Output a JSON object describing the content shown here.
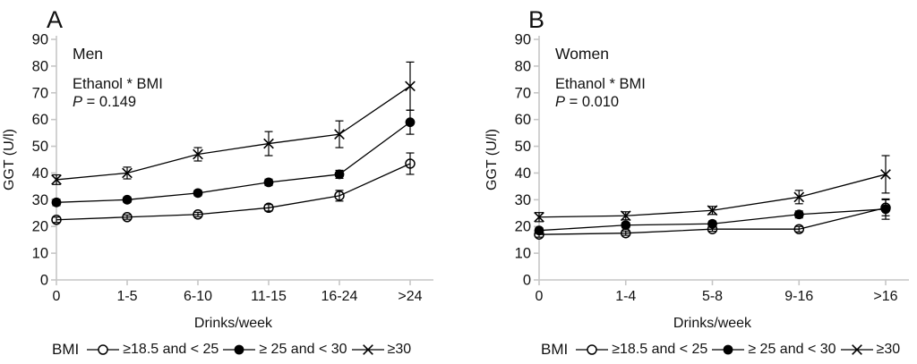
{
  "figure": {
    "background": "#ffffff",
    "line_color": "#000000",
    "axis_color": "#c6c6c6",
    "text_color": "#111111"
  },
  "legend": {
    "prefix": "BMI"
  },
  "chart_data": [
    {
      "type": "line",
      "panel_letter": "A",
      "group_label": "Men",
      "annotation": "Ethanol * BMI",
      "p_italic": "P",
      "p_text": " = 0.149",
      "xlabel": "Drinks/week",
      "ylabel": "GGT (U/l)",
      "ylim": [
        0,
        90
      ],
      "yticks": [
        0,
        10,
        20,
        30,
        40,
        50,
        60,
        70,
        80,
        90
      ],
      "categories": [
        "0",
        "1-5",
        "6-10",
        "11-15",
        "16-24",
        ">24"
      ],
      "series": [
        {
          "name": "≥18.5 and < 25",
          "marker": "open-circle",
          "values": [
            22.5,
            23.5,
            24.5,
            27,
            31.5,
            43.5
          ],
          "errors": [
            1,
            0.8,
            0.8,
            1.2,
            2,
            4
          ]
        },
        {
          "name": "≥ 25 and < 30",
          "marker": "filled-circle",
          "values": [
            29,
            30,
            32.5,
            36.5,
            39.5,
            59
          ],
          "errors": [
            1.2,
            1,
            1,
            1.2,
            1.5,
            4.5
          ]
        },
        {
          "name": "≥30",
          "marker": "x",
          "values": [
            37.5,
            40,
            47,
            51,
            54.5,
            72.5
          ],
          "errors": [
            1.8,
            2.2,
            2.5,
            4.5,
            5,
            9
          ]
        }
      ]
    },
    {
      "type": "line",
      "panel_letter": "B",
      "group_label": "Women",
      "annotation": "Ethanol * BMI",
      "p_italic": "P",
      "p_text": " = 0.010",
      "xlabel": "Drinks/week",
      "ylabel": "GGT (U/l)",
      "ylim": [
        0,
        90
      ],
      "yticks": [
        0,
        10,
        20,
        30,
        40,
        50,
        60,
        70,
        80,
        90
      ],
      "categories": [
        "0",
        "1-4",
        "5-8",
        "9-16",
        ">16"
      ],
      "series": [
        {
          "name": "≥18.5 and < 25",
          "marker": "open-circle",
          "values": [
            17,
            17.5,
            19,
            19,
            27
          ],
          "errors": [
            1,
            0.8,
            0.8,
            1,
            3
          ]
        },
        {
          "name": "≥ 25 and < 30",
          "marker": "filled-circle",
          "values": [
            18.5,
            20.5,
            21,
            24.5,
            26.5
          ],
          "errors": [
            1,
            1,
            1,
            1.3,
            3.8
          ]
        },
        {
          "name": "≥30",
          "marker": "x",
          "values": [
            23.5,
            24,
            26,
            31,
            39.5
          ],
          "errors": [
            1.7,
            1.5,
            1.5,
            2.5,
            7
          ]
        }
      ]
    }
  ]
}
